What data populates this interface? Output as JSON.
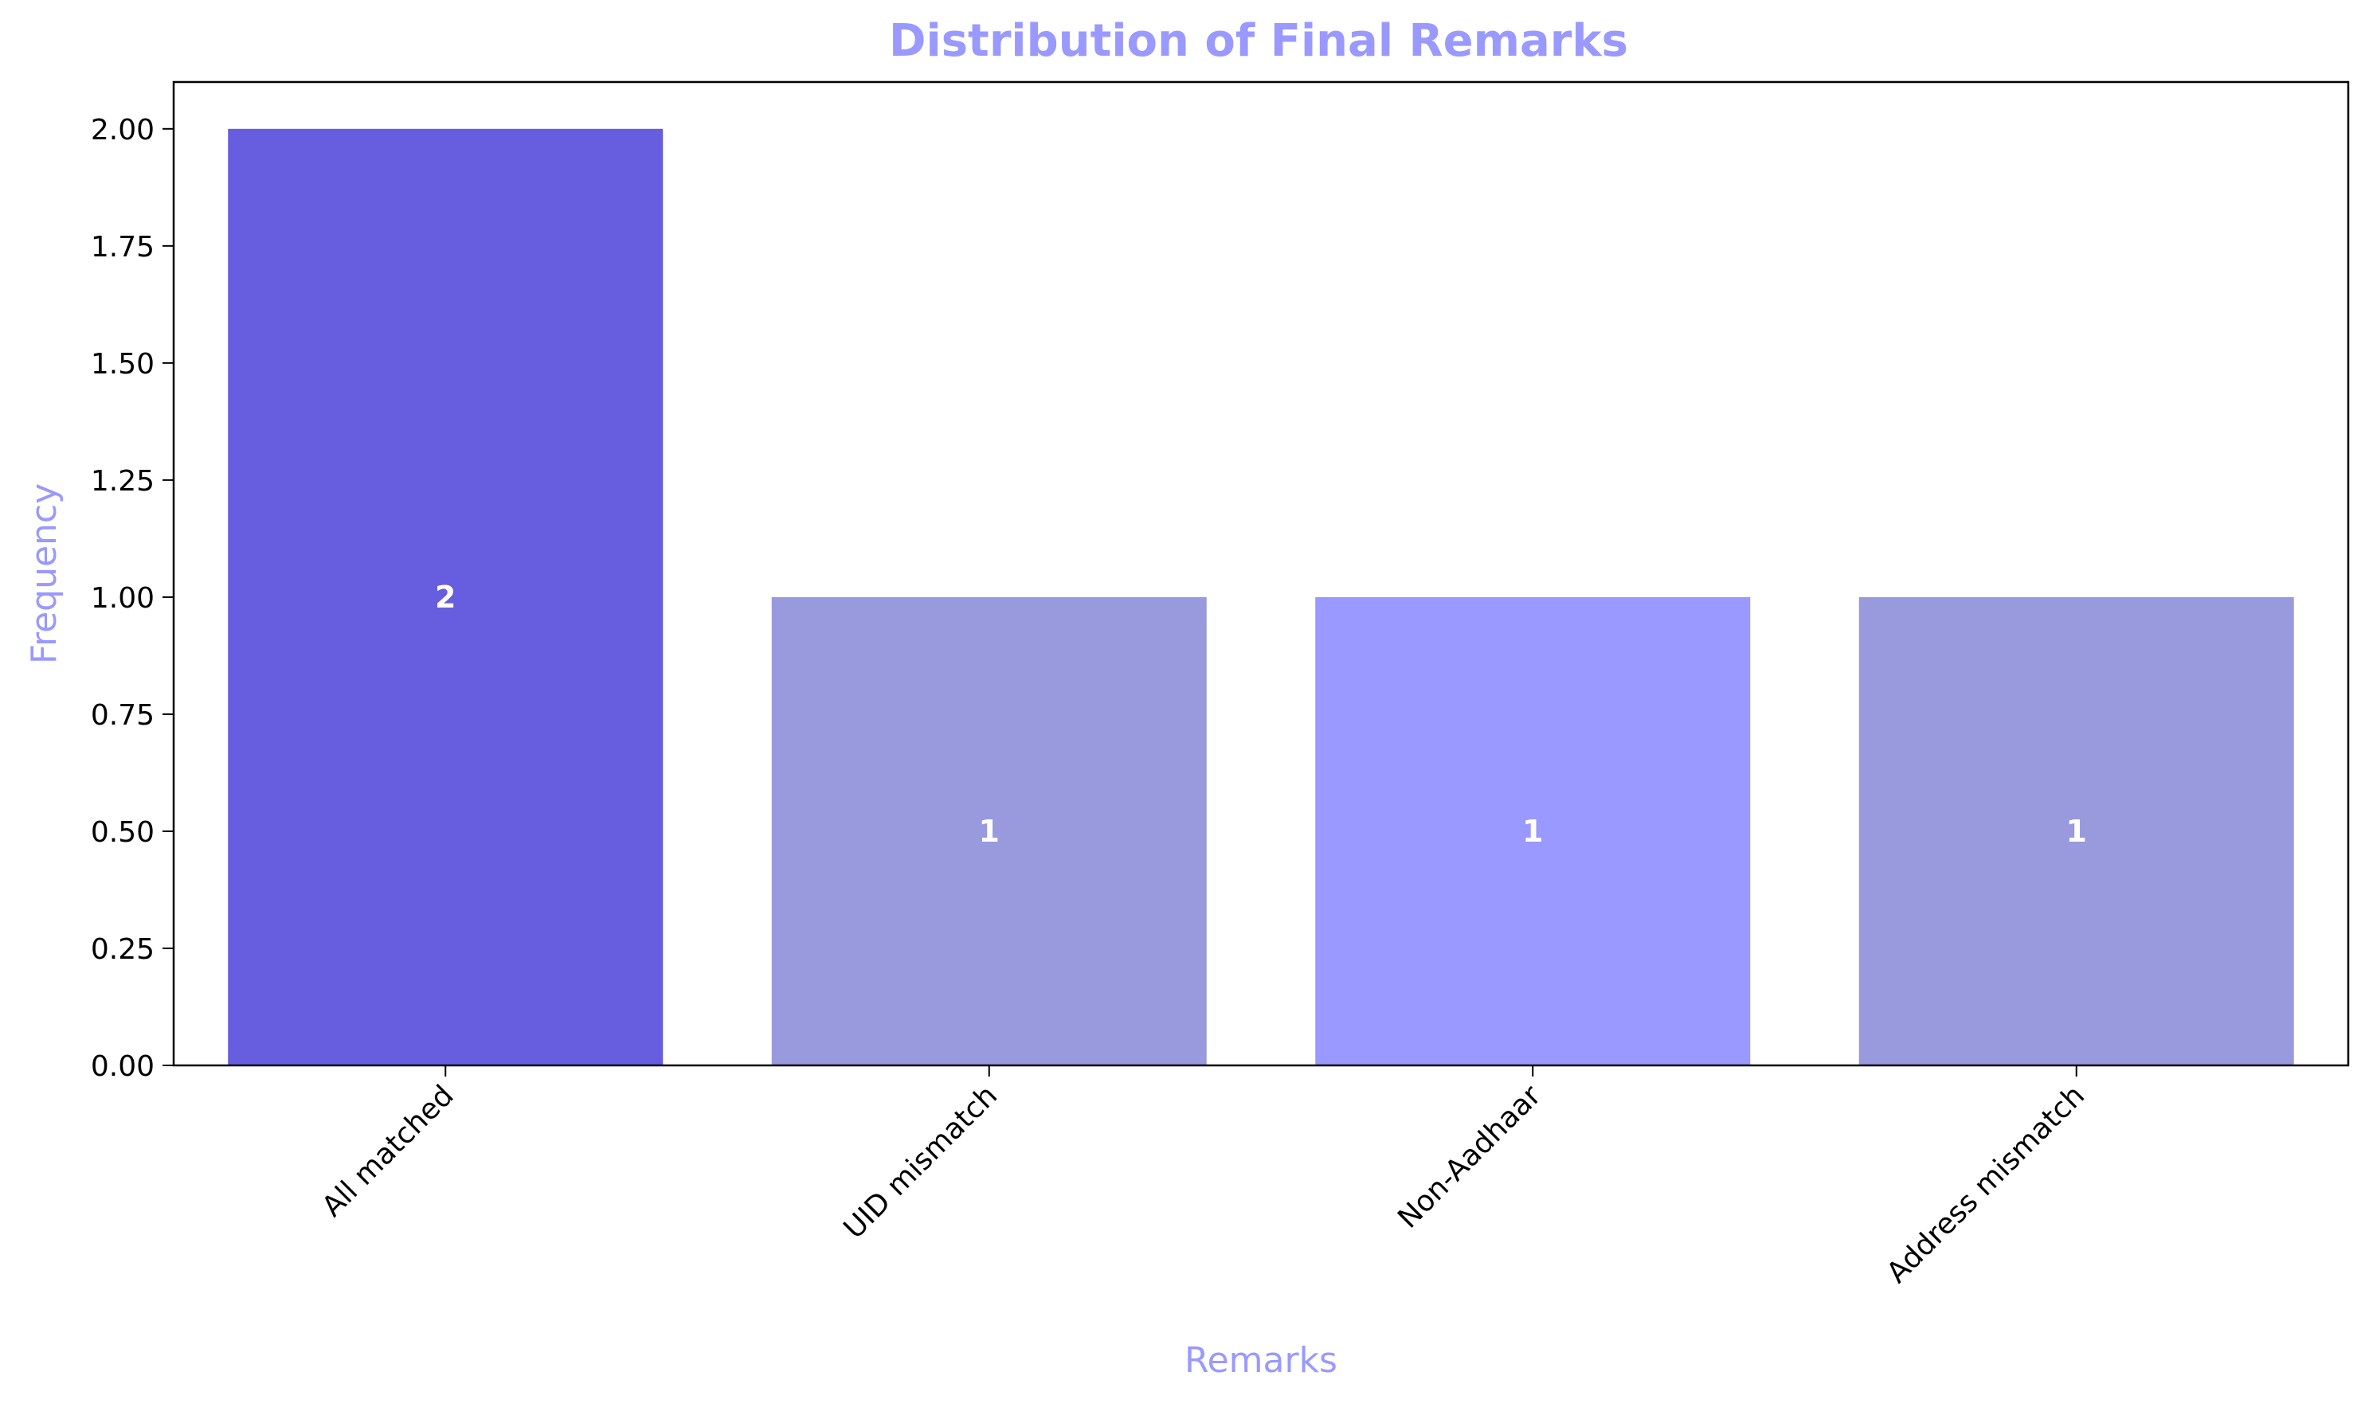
{
  "chart_data": {
    "type": "bar",
    "title": "Distribution of Final Remarks",
    "xlabel": "Remarks",
    "ylabel": "Frequency",
    "categories": [
      "All matched",
      "UID mismatch",
      "Non-Aadhaar",
      "Address mismatch"
    ],
    "values": [
      2,
      1,
      1,
      1
    ],
    "value_labels": [
      "2",
      "1",
      "1",
      "1"
    ],
    "bar_colors": [
      "#665ede",
      "#9999de",
      "#9999ff",
      "#9999de"
    ],
    "ylim": [
      0,
      2.1
    ],
    "yticks": [
      0,
      0.25,
      0.5,
      0.75,
      1.0,
      1.25,
      1.5,
      1.75,
      2.0
    ],
    "ytick_labels": [
      "0.00",
      "0.25",
      "0.50",
      "0.75",
      "1.00",
      "1.25",
      "1.50",
      "1.75",
      "2.00"
    ],
    "grid": false,
    "legend": "none",
    "colors": {
      "title": "#9999ff",
      "axis_label": "#9999ff",
      "value_label": "#ffffff",
      "axes": "#000000"
    }
  }
}
